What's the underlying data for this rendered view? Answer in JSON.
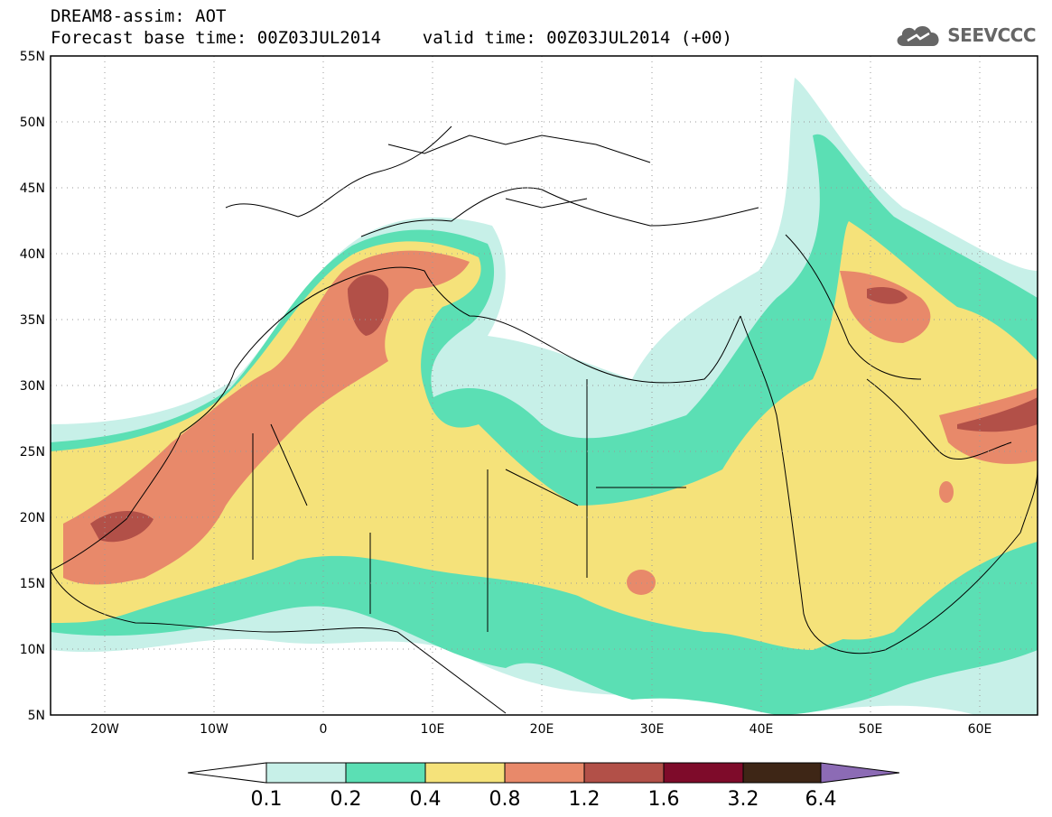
{
  "header": {
    "line1": "DREAM8-assim: AOT",
    "line2": "Forecast base time: 00Z03JUL2014    valid time: 00Z03JUL2014 (+00)",
    "logo_text": "SEEVCCC",
    "logo_icon": "cloud-icon"
  },
  "map": {
    "lon_range": [
      -25,
      65
    ],
    "lat_range": [
      5,
      55
    ],
    "lat_ticks": [
      "55N",
      "50N",
      "45N",
      "40N",
      "35N",
      "30N",
      "25N",
      "20N",
      "15N",
      "10N",
      "5N"
    ],
    "lon_ticks": [
      "20W",
      "10W",
      "0",
      "10E",
      "20E",
      "30E",
      "40E",
      "50E",
      "60E"
    ]
  },
  "colorbar": {
    "labels": [
      "0.1",
      "0.2",
      "0.4",
      "0.8",
      "1.2",
      "1.6",
      "3.2",
      "6.4"
    ],
    "colors": {
      "below": "#ffffff",
      "c1": "#c7f0e8",
      "c2": "#5bdfb4",
      "c3": "#f5e27a",
      "c4": "#e8896a",
      "c5": "#b25048",
      "c6": "#7e0b2a",
      "c7": "#3e2616",
      "above": "#8c6bb5"
    }
  }
}
